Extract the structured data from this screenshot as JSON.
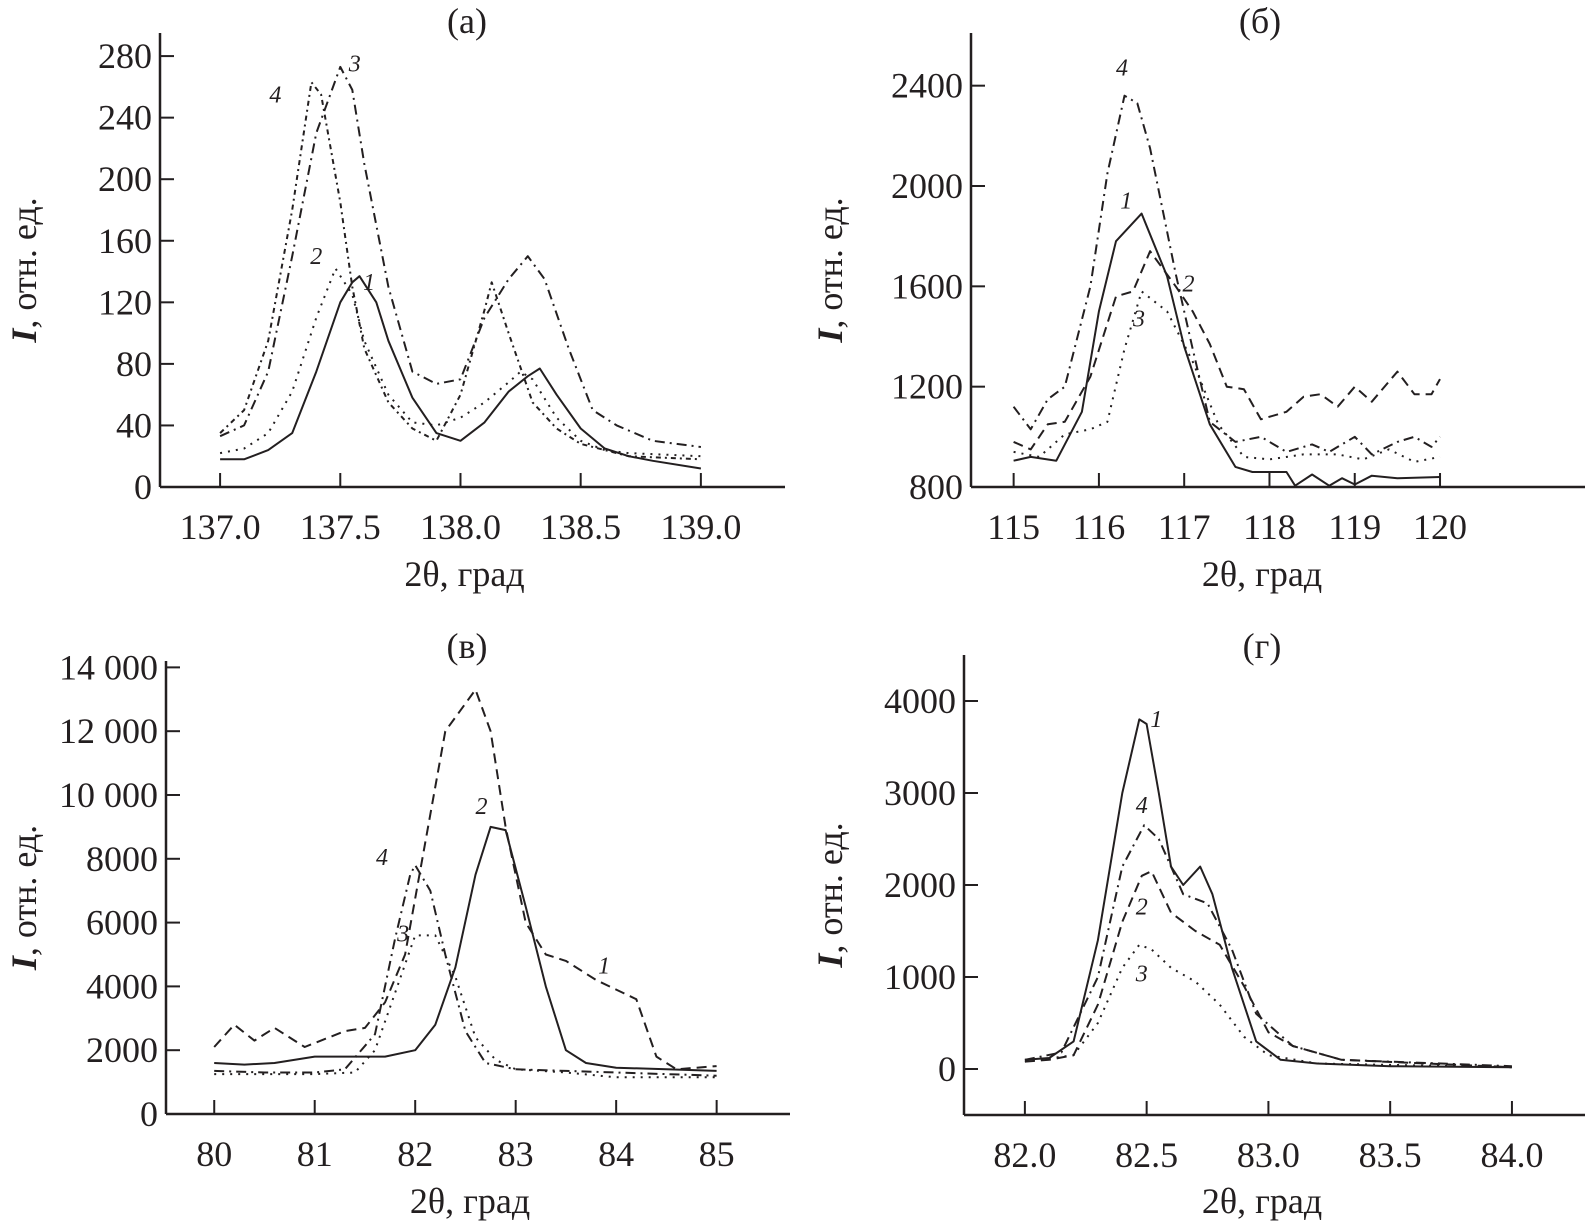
{
  "chart_data": [
    {
      "id": "a",
      "type": "line",
      "title": "(а)",
      "xlabel": "2θ, град",
      "ylabel_italic": "I",
      "ylabel": ", отн. ед.",
      "xlim": [
        136.75,
        139.35
      ],
      "ylim": [
        0,
        295
      ],
      "xticks": [
        137.0,
        137.5,
        138.0,
        138.5,
        139.0
      ],
      "xtick_labels": [
        "137.0",
        "137.5",
        "138.0",
        "138.5",
        "139.0"
      ],
      "yticks": [
        0,
        40,
        80,
        120,
        160,
        200,
        240,
        280
      ],
      "ytick_labels": [
        "0",
        "40",
        "80",
        "120",
        "160",
        "200",
        "240",
        "280"
      ],
      "grid": false,
      "series": [
        {
          "name": "1",
          "style": "solid",
          "x": [
            137.0,
            137.1,
            137.2,
            137.3,
            137.4,
            137.5,
            137.55,
            137.58,
            137.65,
            137.7,
            137.8,
            137.9,
            138.0,
            138.1,
            138.2,
            138.28,
            138.33,
            138.4,
            138.5,
            138.6,
            138.7,
            138.8,
            139.0
          ],
          "y": [
            18,
            18,
            24,
            35,
            75,
            120,
            133,
            137,
            120,
            95,
            58,
            35,
            30,
            42,
            62,
            72,
            77,
            60,
            38,
            25,
            20,
            17,
            12
          ],
          "label_at": [
            137.62,
            128
          ]
        },
        {
          "name": "2",
          "style": "dotted",
          "x": [
            137.0,
            137.1,
            137.2,
            137.3,
            137.4,
            137.48,
            137.55,
            137.6,
            137.7,
            137.8,
            137.9,
            138.0,
            138.1,
            138.2,
            138.25,
            138.3,
            138.4,
            138.5,
            138.6,
            138.7,
            139.0
          ],
          "y": [
            22,
            25,
            35,
            62,
            110,
            142,
            125,
            95,
            60,
            42,
            40,
            45,
            55,
            68,
            75,
            70,
            45,
            30,
            24,
            22,
            20
          ],
          "label_at": [
            137.4,
            145
          ]
        },
        {
          "name": "3",
          "style": "dashdot",
          "x": [
            137.0,
            137.1,
            137.2,
            137.3,
            137.4,
            137.5,
            137.55,
            137.6,
            137.7,
            137.8,
            137.9,
            138.0,
            138.1,
            138.2,
            138.28,
            138.35,
            138.45,
            138.55,
            138.65,
            138.8,
            139.0
          ],
          "y": [
            33,
            40,
            75,
            150,
            230,
            273,
            258,
            210,
            130,
            75,
            67,
            70,
            110,
            135,
            150,
            135,
            90,
            50,
            40,
            30,
            26
          ],
          "label_at": [
            137.56,
            270
          ]
        },
        {
          "name": "4",
          "style": "shortdash",
          "x": [
            137.0,
            137.1,
            137.2,
            137.3,
            137.38,
            137.42,
            137.5,
            137.55,
            137.6,
            137.7,
            137.8,
            137.9,
            138.0,
            138.1,
            138.13,
            138.2,
            138.3,
            138.4,
            138.5,
            138.7,
            139.0
          ],
          "y": [
            35,
            50,
            95,
            180,
            263,
            255,
            185,
            130,
            90,
            55,
            38,
            30,
            60,
            115,
            133,
            100,
            55,
            38,
            28,
            20,
            18
          ],
          "label_at": [
            137.23,
            250
          ]
        }
      ]
    },
    {
      "id": "b",
      "type": "line",
      "title": "(б)",
      "xlabel": "2θ, град",
      "ylabel_italic": "I",
      "ylabel": ", отн. ед.",
      "xlim": [
        114.5,
        121.7
      ],
      "ylim": [
        800,
        2610
      ],
      "xticks": [
        115,
        116,
        117,
        118,
        119,
        120
      ],
      "xtick_labels": [
        "115",
        "116",
        "117",
        "118",
        "119",
        "120"
      ],
      "yticks": [
        800,
        1200,
        1600,
        2000,
        2400
      ],
      "ytick_labels": [
        "800",
        "1200",
        "1600",
        "2000",
        "2400"
      ],
      "grid": false,
      "series": [
        {
          "name": "1",
          "style": "solid",
          "x": [
            115,
            115.2,
            115.5,
            115.8,
            116.0,
            116.2,
            116.5,
            116.8,
            117.0,
            117.3,
            117.6,
            117.8,
            118.2,
            118.3,
            118.5,
            118.7,
            118.85,
            119.0,
            119.2,
            119.5,
            120
          ],
          "y": [
            905,
            920,
            905,
            1100,
            1500,
            1780,
            1890,
            1640,
            1360,
            1050,
            880,
            860,
            860,
            805,
            850,
            805,
            835,
            810,
            845,
            835,
            840
          ],
          "label_at": [
            116.32,
            1910
          ]
        },
        {
          "name": "2",
          "style": "dashed",
          "x": [
            115,
            115.2,
            115.4,
            115.6,
            115.9,
            116.2,
            116.4,
            116.6,
            116.9,
            117.1,
            117.3,
            117.5,
            117.7,
            117.9,
            118.2,
            118.4,
            118.6,
            118.8,
            119.0,
            119.2,
            119.5,
            119.7,
            119.9,
            120
          ],
          "y": [
            980,
            950,
            1050,
            1060,
            1240,
            1560,
            1580,
            1740,
            1600,
            1500,
            1370,
            1200,
            1190,
            1070,
            1100,
            1160,
            1170,
            1120,
            1200,
            1140,
            1260,
            1170,
            1170,
            1230
          ],
          "label_at": [
            117.05,
            1580
          ]
        },
        {
          "name": "3",
          "style": "dotted",
          "x": [
            115,
            115.3,
            115.6,
            115.9,
            116.1,
            116.3,
            116.5,
            116.8,
            117.1,
            117.4,
            117.7,
            118.0,
            118.4,
            118.8,
            119.1,
            119.4,
            119.7,
            120
          ],
          "y": [
            940,
            920,
            1010,
            1030,
            1060,
            1350,
            1580,
            1500,
            1300,
            1050,
            920,
            910,
            930,
            930,
            910,
            950,
            900,
            920
          ],
          "label_at": [
            116.47,
            1440
          ]
        },
        {
          "name": "4",
          "style": "dashdot",
          "x": [
            115,
            115.2,
            115.4,
            115.6,
            115.9,
            116.1,
            116.3,
            116.45,
            116.6,
            116.9,
            117.1,
            117.3,
            117.6,
            117.9,
            118.2,
            118.5,
            118.7,
            119.0,
            119.2,
            119.5,
            119.7,
            119.9,
            120
          ],
          "y": [
            1120,
            1030,
            1150,
            1200,
            1600,
            2050,
            2360,
            2330,
            2150,
            1650,
            1350,
            1060,
            980,
            1000,
            940,
            970,
            940,
            1000,
            930,
            980,
            1000,
            960,
            1000
          ],
          "label_at": [
            116.27,
            2440
          ]
        }
      ]
    },
    {
      "id": "v",
      "type": "line",
      "title": "(в)",
      "xlabel": "2θ, град",
      "ylabel_italic": "I",
      "ylabel": ", отн. ед.",
      "xlim": [
        79.52,
        85.73
      ],
      "ylim": [
        0,
        14200
      ],
      "xticks": [
        80,
        81,
        82,
        83,
        84,
        85
      ],
      "xtick_labels": [
        "80",
        "81",
        "82",
        "83",
        "84",
        "85"
      ],
      "yticks": [
        0,
        2000,
        4000,
        6000,
        8000,
        10000,
        12000,
        14000
      ],
      "ytick_labels": [
        "0",
        "2000",
        "4000",
        "6000",
        "8000",
        "10 000",
        "12 000",
        "14 000"
      ],
      "grid": false,
      "series": [
        {
          "name": "1",
          "style": "dashed",
          "x": [
            80,
            80.2,
            80.4,
            80.6,
            80.9,
            81.3,
            81.5,
            81.7,
            81.9,
            82.1,
            82.3,
            82.6,
            82.75,
            82.9,
            83.1,
            83.3,
            83.5,
            83.8,
            84.0,
            84.2,
            84.4,
            84.6,
            85
          ],
          "y": [
            2100,
            2800,
            2300,
            2700,
            2100,
            2600,
            2700,
            3500,
            5000,
            8500,
            12000,
            13300,
            12000,
            9000,
            6000,
            5000,
            4800,
            4200,
            3900,
            3600,
            1800,
            1400,
            1500
          ],
          "label_at": [
            83.88,
            4400
          ]
        },
        {
          "name": "2",
          "style": "solid",
          "x": [
            80,
            80.3,
            80.6,
            81.0,
            81.4,
            81.7,
            82.0,
            82.2,
            82.4,
            82.6,
            82.75,
            82.9,
            83.1,
            83.3,
            83.5,
            83.7,
            84.0,
            84.5,
            85
          ],
          "y": [
            1600,
            1550,
            1600,
            1800,
            1800,
            1800,
            2000,
            2800,
            4600,
            7500,
            9000,
            8900,
            6500,
            4000,
            2000,
            1600,
            1450,
            1400,
            1350
          ],
          "label_at": [
            82.66,
            9400
          ]
        },
        {
          "name": "3",
          "style": "dotted",
          "x": [
            80,
            80.5,
            81.0,
            81.4,
            81.6,
            81.8,
            82.0,
            82.2,
            82.4,
            82.6,
            82.8,
            83.0,
            83.5,
            84.0,
            85
          ],
          "y": [
            1250,
            1250,
            1250,
            1300,
            2000,
            3800,
            5600,
            5600,
            4300,
            2400,
            1700,
            1400,
            1300,
            1150,
            1150
          ],
          "label_at": [
            81.88,
            5400
          ]
        },
        {
          "name": "4",
          "style": "dashdot",
          "x": [
            80,
            80.5,
            81.0,
            81.3,
            81.6,
            81.8,
            81.95,
            82.0,
            82.15,
            82.3,
            82.5,
            82.7,
            83.0,
            83.5,
            84.0,
            85
          ],
          "y": [
            1350,
            1300,
            1300,
            1400,
            2500,
            5500,
            7500,
            7800,
            7000,
            5000,
            2600,
            1600,
            1400,
            1350,
            1300,
            1200
          ],
          "label_at": [
            81.67,
            7800
          ]
        }
      ]
    },
    {
      "id": "g",
      "type": "line",
      "title": "(г)",
      "xlabel": "2θ, град",
      "ylabel_italic": "I",
      "ylabel": ", отн. ед.",
      "xlim": [
        81.75,
        84.3
      ],
      "ylim": [
        -500,
        4500
      ],
      "xticks": [
        82.0,
        82.5,
        83.0,
        83.5,
        84.0
      ],
      "xtick_labels": [
        "82.0",
        "82.5",
        "83.0",
        "83.5",
        "84.0"
      ],
      "yticks": [
        0,
        1000,
        2000,
        3000,
        4000
      ],
      "ytick_labels": [
        "0",
        "1000",
        "2000",
        "3000",
        "4000"
      ],
      "grid": false,
      "series": [
        {
          "name": "1",
          "style": "solid",
          "x": [
            82.0,
            82.1,
            82.2,
            82.3,
            82.4,
            82.47,
            82.5,
            82.55,
            82.6,
            82.65,
            82.72,
            82.77,
            82.85,
            82.95,
            83.05,
            83.2,
            83.5,
            84.0
          ],
          "y": [
            100,
            120,
            300,
            1400,
            3000,
            3800,
            3750,
            3000,
            2200,
            2000,
            2200,
            1900,
            1100,
            300,
            100,
            60,
            30,
            20
          ],
          "label_at": [
            82.54,
            3720
          ]
        },
        {
          "name": "2",
          "style": "dashed",
          "x": [
            82.0,
            82.1,
            82.2,
            82.3,
            82.4,
            82.48,
            82.52,
            82.6,
            82.7,
            82.8,
            82.9,
            83.0,
            83.1,
            83.3,
            84.0
          ],
          "y": [
            80,
            100,
            150,
            700,
            1600,
            2100,
            2150,
            1700,
            1500,
            1350,
            900,
            400,
            250,
            100,
            20
          ],
          "label_at": [
            82.48,
            1680
          ]
        },
        {
          "name": "3",
          "style": "dotted",
          "x": [
            82.0,
            82.2,
            82.3,
            82.4,
            82.47,
            82.52,
            82.6,
            82.7,
            82.8,
            82.9,
            83.0,
            83.2,
            84.0
          ],
          "y": [
            80,
            150,
            500,
            1100,
            1350,
            1300,
            1100,
            950,
            700,
            350,
            150,
            60,
            20
          ],
          "label_at": [
            82.48,
            950
          ]
        },
        {
          "name": "4",
          "style": "dashdot",
          "x": [
            82.0,
            82.15,
            82.3,
            82.4,
            82.49,
            82.55,
            82.65,
            82.75,
            82.85,
            82.95,
            83.1,
            83.3,
            84.0
          ],
          "y": [
            100,
            180,
            1000,
            2200,
            2650,
            2500,
            1900,
            1800,
            1300,
            600,
            250,
            100,
            30
          ],
          "label_at": [
            82.48,
            2780
          ]
        }
      ]
    }
  ]
}
